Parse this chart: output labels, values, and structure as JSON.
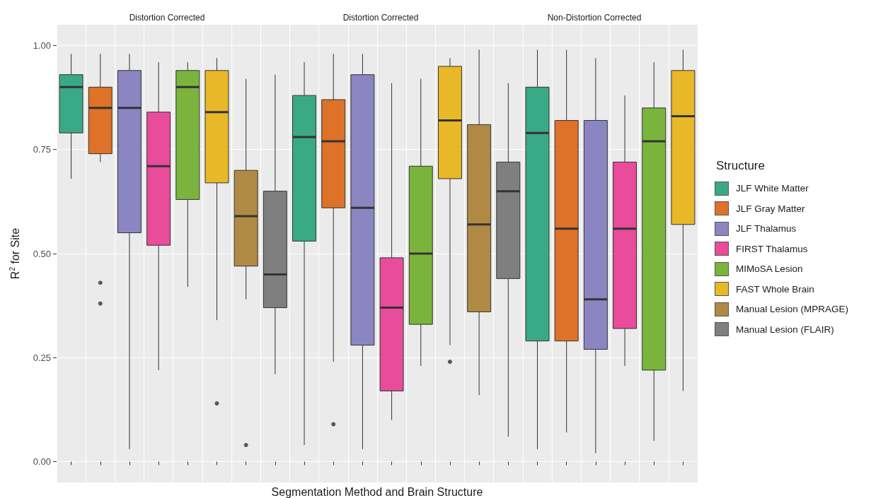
{
  "chart_data": {
    "type": "box",
    "annotations": [
      "Distortion Corrected",
      "Distortion Corrected",
      "Non-Distortion Corrected"
    ],
    "ylabel": "R$^{2}$ for Site",
    "xlabel": "Segmentation Method and Brain Structure",
    "legend_title": "Structure",
    "legend": "right",
    "grid": true,
    "ylim": [
      -0.05,
      1.05
    ],
    "yticks": [
      {
        "value": 0,
        "label": "0.00"
      },
      {
        "value": 0.25,
        "label": "0.25"
      },
      {
        "value": 0.5,
        "label": "0.50"
      },
      {
        "value": 0.75,
        "label": "0.75"
      },
      {
        "value": 1,
        "label": "1.00"
      }
    ],
    "categories": [
      null,
      null,
      null,
      null,
      null,
      null,
      null,
      null,
      null,
      null,
      null,
      null,
      null,
      null,
      null,
      null,
      null,
      null,
      null,
      null,
      null,
      null
    ],
    "series": [
      {
        "name": "JLF White Matter",
        "color": "#3aa986",
        "boxes": [
          {
            "low": 0.68,
            "q1": 0.79,
            "median": 0.9,
            "q3": 0.93,
            "high": 0.98
          },
          null,
          null,
          null,
          null,
          null,
          null,
          null,
          {
            "low": 0.04,
            "q1": 0.53,
            "median": 0.78,
            "q3": 0.88,
            "high": 0.96
          },
          null,
          null,
          null,
          null,
          null,
          null,
          null,
          {
            "low": 0.03,
            "q1": 0.29,
            "median": 0.79,
            "q3": 0.9,
            "high": 0.99
          },
          null,
          null,
          null,
          null,
          null
        ]
      },
      {
        "name": "JLF Gray Matter",
        "color": "#dd7228",
        "boxes": [
          null,
          {
            "low": 0.72,
            "q1": 0.74,
            "median": 0.85,
            "q3": 0.9,
            "high": 0.98,
            "outliers": [
              0.43,
              0.38
            ]
          },
          null,
          null,
          null,
          null,
          null,
          null,
          null,
          {
            "low": 0.24,
            "q1": 0.61,
            "median": 0.77,
            "q3": 0.87,
            "high": 0.98,
            "outliers": [
              0.09
            ]
          },
          null,
          null,
          null,
          null,
          null,
          null,
          null,
          {
            "low": 0.07,
            "q1": 0.29,
            "median": 0.56,
            "q3": 0.82,
            "high": 0.99
          },
          null,
          null,
          null,
          null
        ]
      },
      {
        "name": "JLF Thalamus",
        "color": "#8b86c2",
        "boxes": [
          null,
          null,
          {
            "low": 0.03,
            "q1": 0.55,
            "median": 0.85,
            "q3": 0.94,
            "high": 0.98
          },
          null,
          null,
          null,
          null,
          null,
          null,
          null,
          {
            "low": 0.03,
            "q1": 0.28,
            "median": 0.61,
            "q3": 0.93,
            "high": 0.98
          },
          null,
          null,
          null,
          null,
          null,
          null,
          null,
          {
            "low": 0.02,
            "q1": 0.27,
            "median": 0.39,
            "q3": 0.82,
            "high": 0.97
          },
          null,
          null,
          null
        ]
      },
      {
        "name": "FIRST Thalamus",
        "color": "#e84c9b",
        "boxes": [
          null,
          null,
          null,
          {
            "low": 0.22,
            "q1": 0.52,
            "median": 0.71,
            "q3": 0.84,
            "high": 0.96
          },
          null,
          null,
          null,
          null,
          null,
          null,
          null,
          {
            "low": 0.1,
            "q1": 0.17,
            "median": 0.37,
            "q3": 0.49,
            "high": 0.91
          },
          null,
          null,
          null,
          null,
          null,
          null,
          null,
          {
            "low": 0.23,
            "q1": 0.32,
            "median": 0.56,
            "q3": 0.72,
            "high": 0.88
          },
          null,
          null
        ]
      },
      {
        "name": "MIMoSA Lesion",
        "color": "#7ab43d",
        "boxes": [
          null,
          null,
          null,
          null,
          {
            "low": 0.42,
            "q1": 0.63,
            "median": 0.9,
            "q3": 0.94,
            "high": 0.96
          },
          null,
          null,
          null,
          null,
          null,
          null,
          null,
          {
            "low": 0.23,
            "q1": 0.33,
            "median": 0.5,
            "q3": 0.71,
            "high": 0.92
          },
          null,
          null,
          null,
          null,
          null,
          null,
          null,
          {
            "low": 0.05,
            "q1": 0.22,
            "median": 0.77,
            "q3": 0.85,
            "high": 0.96
          },
          null
        ]
      },
      {
        "name": "FAST Whole Brain",
        "color": "#e8b828",
        "boxes": [
          null,
          null,
          null,
          null,
          null,
          {
            "low": 0.34,
            "q1": 0.67,
            "median": 0.84,
            "q3": 0.94,
            "high": 0.97,
            "outliers": [
              0.14
            ]
          },
          null,
          null,
          null,
          null,
          null,
          null,
          null,
          {
            "low": 0.28,
            "q1": 0.68,
            "median": 0.82,
            "q3": 0.95,
            "high": 0.97,
            "outliers": [
              0.24
            ]
          },
          null,
          null,
          null,
          null,
          null,
          null,
          null,
          {
            "low": 0.17,
            "q1": 0.57,
            "median": 0.83,
            "q3": 0.94,
            "high": 0.99
          }
        ]
      },
      {
        "name": "Manual Lesion (MPRAGE)",
        "color": "#b08a45",
        "boxes": [
          null,
          null,
          null,
          null,
          null,
          null,
          {
            "low": 0.39,
            "q1": 0.47,
            "median": 0.59,
            "q3": 0.7,
            "high": 0.92,
            "outliers": [
              0.04
            ]
          },
          null,
          null,
          null,
          null,
          null,
          null,
          null,
          {
            "low": 0.16,
            "q1": 0.36,
            "median": 0.57,
            "q3": 0.81,
            "high": 0.99
          },
          null,
          null,
          null,
          null,
          null,
          null,
          null
        ]
      },
      {
        "name": "Manual Lesion (FLAIR)",
        "color": "#7f7f7f",
        "boxes": [
          null,
          null,
          null,
          null,
          null,
          null,
          null,
          {
            "low": 0.21,
            "q1": 0.37,
            "median": 0.45,
            "q3": 0.65,
            "high": 0.93
          },
          null,
          null,
          null,
          null,
          null,
          null,
          null,
          {
            "low": 0.06,
            "q1": 0.44,
            "median": 0.65,
            "q3": 0.72,
            "high": 0.91
          },
          null,
          null,
          null,
          null,
          null,
          null
        ]
      }
    ]
  }
}
